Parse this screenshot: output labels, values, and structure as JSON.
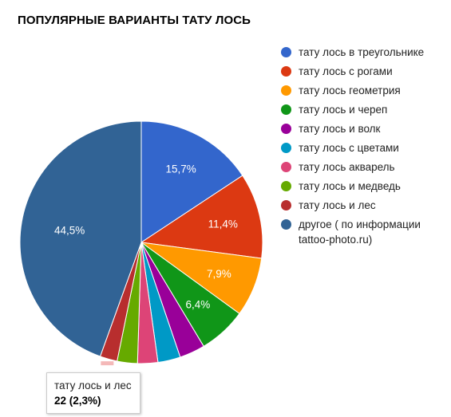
{
  "title": "ПОПУЛЯРНЫЕ ВАРИАНТЫ ТАТУ ЛОСЬ",
  "chart_data": {
    "type": "pie",
    "title": "ПОПУЛЯРНЫЕ ВАРИАНТЫ ТАТУ ЛОСЬ",
    "legend_position": "right",
    "slices": [
      {
        "label": "тату лось в треугольнике",
        "value": 15.7,
        "display": "15,7%",
        "color": "#3366cc"
      },
      {
        "label": "тату лось с рогами",
        "value": 11.4,
        "display": "11,4%",
        "color": "#dc3912"
      },
      {
        "label": "тату лось геометрия",
        "value": 7.9,
        "display": "7,9%",
        "color": "#ff9900"
      },
      {
        "label": "тату лось и череп",
        "value": 6.4,
        "display": "6,4%",
        "color": "#109618"
      },
      {
        "label": "тату лось и волк",
        "value": 3.4,
        "display": "",
        "color": "#990099"
      },
      {
        "label": "тату лось с цветами",
        "value": 3.0,
        "display": "",
        "color": "#0099c6"
      },
      {
        "label": "тату лось акварель",
        "value": 2.7,
        "display": "",
        "color": "#dd4477"
      },
      {
        "label": "тату лось и медведь",
        "value": 2.7,
        "display": "",
        "color": "#66aa00"
      },
      {
        "label": "тату лось и лес",
        "value": 2.3,
        "display": "",
        "color": "#b82e2e"
      },
      {
        "label": "другое ( по информации tattoo-photo.ru)",
        "value": 44.5,
        "display": "44,5%",
        "color": "#316395"
      }
    ]
  },
  "legend": [
    {
      "label": "тату лось в треугольнике",
      "color": "#3366cc"
    },
    {
      "label": "тату лось с рогами",
      "color": "#dc3912"
    },
    {
      "label": "тату лось геометрия",
      "color": "#ff9900"
    },
    {
      "label": "тату лось и череп",
      "color": "#109618"
    },
    {
      "label": "тату лось и волк",
      "color": "#990099"
    },
    {
      "label": "тату лось с цветами",
      "color": "#0099c6"
    },
    {
      "label": "тату лось акварель",
      "color": "#dd4477"
    },
    {
      "label": "тату лось и медведь",
      "color": "#66aa00"
    },
    {
      "label": "тату лось и лес",
      "color": "#b82e2e"
    },
    {
      "label": "другое ( по информации tattoo-photo.ru)",
      "color": "#316395"
    }
  ],
  "tooltip": {
    "label": "тату лось и лес",
    "value": "22 (2,3%)"
  }
}
